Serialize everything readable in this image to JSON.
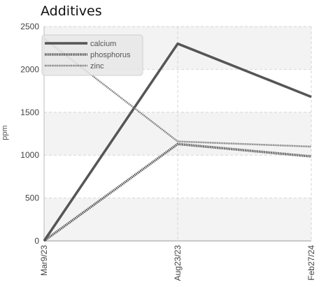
{
  "chart_data": {
    "type": "line",
    "title": "Additives",
    "xlabel": "",
    "ylabel": "ppm",
    "categories": [
      "Mar9/23",
      "Aug23/23",
      "Feb27/24"
    ],
    "ylim": [
      0,
      2500
    ],
    "yticks": [
      0,
      500,
      1000,
      1500,
      2000,
      2500
    ],
    "grid": true,
    "legend_position": "top-left",
    "series": [
      {
        "name": "calcium",
        "values": [
          0,
          2300,
          1680
        ],
        "color": "#555555",
        "style": "solid"
      },
      {
        "name": "phosphorus",
        "values": [
          0,
          1130,
          985
        ],
        "color": "#555555",
        "style": "dotted"
      },
      {
        "name": "zinc",
        "values": [
          2360,
          1160,
          1100
        ],
        "color": "#777777",
        "style": "dotted"
      }
    ]
  }
}
